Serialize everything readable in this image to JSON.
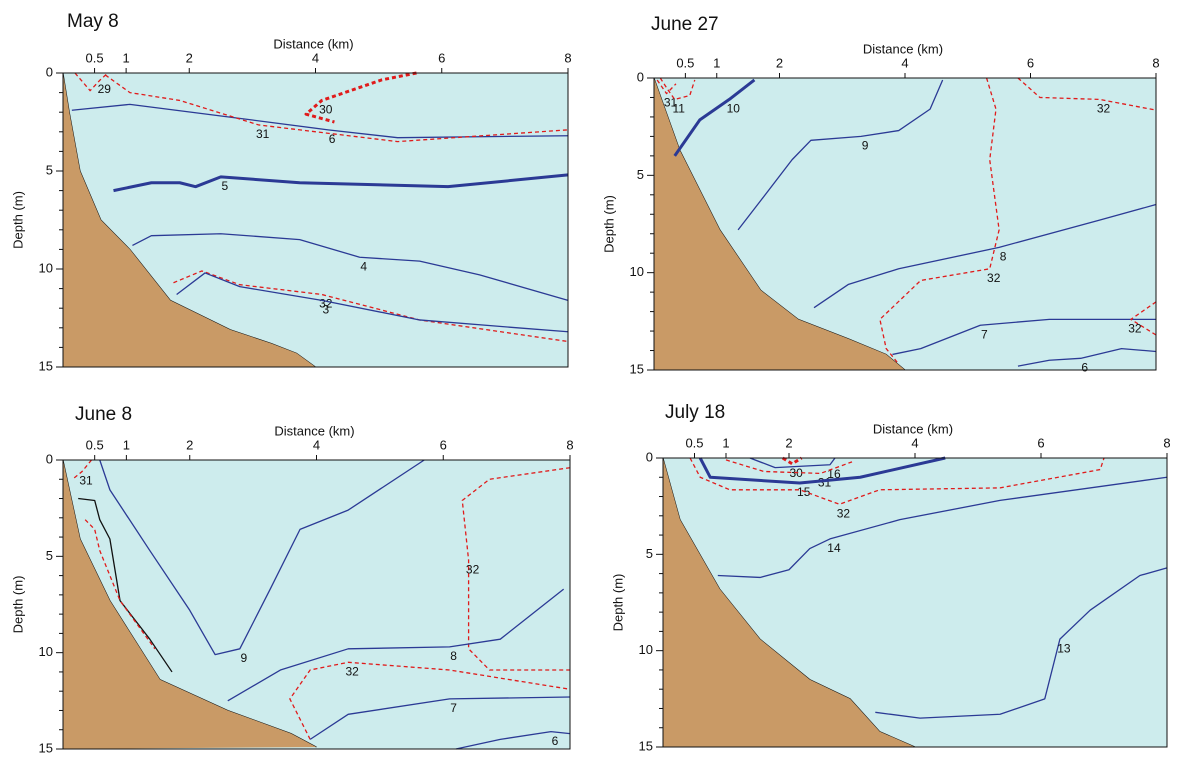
{
  "chart_data": [
    {
      "type": "contour",
      "title": "May 8",
      "xlabel": "Distance (km)",
      "ylabel": "Depth (m)",
      "xlim": [
        0,
        8
      ],
      "ylim": [
        15,
        0
      ],
      "xticks": [
        0.5,
        1,
        2,
        4,
        6,
        8
      ],
      "yticks": [
        0,
        5,
        10,
        15
      ],
      "yminorticks": [
        1,
        2,
        3,
        4,
        6,
        7,
        8,
        9,
        11,
        12,
        13,
        14
      ],
      "background": "#cdeced",
      "bottom": {
        "color": "#c99a66",
        "x": [
          0,
          0.1,
          0.27,
          0.6,
          1.06,
          1.7,
          2.65,
          3.3,
          3.7,
          4.0
        ],
        "y": [
          0,
          2,
          5,
          7.5,
          9,
          11.6,
          13.1,
          13.8,
          14.3,
          15
        ]
      },
      "contours": [
        {
          "level": 29,
          "color": "#e01b1b",
          "dashed": true,
          "thick": false,
          "x": [
            0.19,
            0.43,
            0.59,
            0.71
          ],
          "y": [
            0,
            0.9,
            0.35,
            0
          ]
        },
        {
          "level": 30,
          "color": "#e01b1b",
          "dashed": true,
          "thick": true,
          "x": [
            5.6,
            5.05,
            4.1,
            3.85,
            4.3
          ],
          "y": [
            0,
            0.35,
            1.4,
            2.1,
            2.5
          ]
        },
        {
          "level": 6,
          "color": "#2b3a95",
          "dashed": false,
          "thick": false,
          "x": [
            0.14,
            1.06,
            3.0,
            4.2,
            5.3,
            8
          ],
          "y": [
            1.9,
            1.6,
            2.4,
            2.9,
            3.3,
            3.2
          ]
        },
        {
          "level": 31,
          "color": "#e01b1b",
          "dashed": true,
          "thick": false,
          "x": [
            0.67,
            1.06,
            1.85,
            3.1,
            5.3,
            8
          ],
          "y": [
            0.1,
            1.0,
            1.4,
            2.65,
            3.5,
            2.9
          ]
        },
        {
          "level": 5,
          "color": "#2b3a95",
          "dashed": false,
          "thick": true,
          "x": [
            0.8,
            1.4,
            1.85,
            2.1,
            2.5,
            3.75,
            6.1,
            8
          ],
          "y": [
            6.0,
            5.6,
            5.6,
            5.8,
            5.3,
            5.6,
            5.8,
            5.2
          ]
        },
        {
          "level": 4,
          "color": "#2b3a95",
          "dashed": false,
          "thick": false,
          "x": [
            1.1,
            1.4,
            2.5,
            3.75,
            4.7,
            5.65,
            6.6,
            8
          ],
          "y": [
            8.8,
            8.3,
            8.2,
            8.5,
            9.4,
            9.6,
            10.3,
            11.6
          ]
        },
        {
          "level": 32,
          "color": "#e01b1b",
          "dashed": true,
          "thick": false,
          "x": [
            1.75,
            2.2,
            2.8,
            4.1,
            5.65,
            8
          ],
          "y": [
            10.7,
            10.1,
            10.8,
            11.3,
            12.6,
            13.7
          ]
        },
        {
          "level": 3,
          "color": "#2b3a95",
          "dashed": false,
          "thick": false,
          "x": [
            1.8,
            2.25,
            2.8,
            4.1,
            5.65,
            7.2,
            8
          ],
          "y": [
            11.3,
            10.2,
            10.9,
            11.6,
            12.6,
            13.0,
            13.2
          ]
        }
      ]
    },
    {
      "type": "contour",
      "title": "June 27",
      "xlabel": "Distance (km)",
      "ylabel": "Depth (m)",
      "xlim": [
        0,
        8
      ],
      "ylim": [
        15,
        0
      ],
      "xticks": [
        0.5,
        1,
        2,
        4,
        6,
        8
      ],
      "yticks": [
        0,
        5,
        10,
        15
      ],
      "yminorticks": [
        1,
        2,
        3,
        4,
        6,
        7,
        8,
        9,
        11,
        12,
        13,
        14
      ],
      "background": "#cdeced",
      "bottom": {
        "color": "#c99a66",
        "x": [
          0,
          0.41,
          1.05,
          1.7,
          2.3,
          3.1,
          3.7,
          4.0
        ],
        "y": [
          0,
          3.7,
          7.8,
          10.9,
          12.4,
          13.4,
          14.2,
          15
        ]
      },
      "contours": [
        {
          "level": 31,
          "color": "#e01b1b",
          "dashed": true,
          "thick": false,
          "x": [
            0.05,
            0.2,
            0.35
          ],
          "y": [
            0.1,
            0.8,
            0.3
          ]
        },
        {
          "level": 11,
          "color": "#e01b1b",
          "dashed": true,
          "thick": false,
          "x": [
            0.1,
            0.22,
            0.33,
            0.57,
            0.65
          ],
          "y": [
            0,
            0.6,
            1.1,
            0.9,
            0.1
          ]
        },
        {
          "level": 10,
          "color": "#2b3a95",
          "dashed": false,
          "thick": true,
          "x": [
            0.33,
            0.73,
            1.2,
            1.6
          ],
          "y": [
            4.0,
            2.15,
            1.1,
            0.1
          ]
        },
        {
          "level": 9,
          "color": "#2b3a95",
          "dashed": false,
          "thick": false,
          "x": [
            1.34,
            1.7,
            2.2,
            2.5,
            3.3,
            3.9,
            4.4,
            4.6
          ],
          "y": [
            7.8,
            6.3,
            4.2,
            3.2,
            3.0,
            2.7,
            1.6,
            0.1
          ]
        },
        {
          "level": 32,
          "color": "#e01b1b",
          "dashed": true,
          "thick": false,
          "x": [
            5.3,
            5.45,
            5.35,
            5.5,
            5.35,
            4.25,
            3.6,
            3.7,
            3.9
          ],
          "y": [
            0,
            1.6,
            4.2,
            7.8,
            9.8,
            10.4,
            12.4,
            13.9,
            14.7
          ]
        },
        {
          "level": 32,
          "color": "#e01b1b",
          "dashed": true,
          "thick": false,
          "x": [
            5.8,
            6.15,
            7.1,
            8
          ],
          "y": [
            0,
            1.0,
            1.1,
            1.65
          ]
        },
        {
          "level": 8,
          "color": "#2b3a95",
          "dashed": false,
          "thick": false,
          "x": [
            2.55,
            3.1,
            3.9,
            5.5,
            7.1,
            8
          ],
          "y": [
            11.8,
            10.6,
            9.8,
            8.7,
            7.3,
            6.5
          ]
        },
        {
          "level": 7,
          "color": "#2b3a95",
          "dashed": false,
          "thick": false,
          "x": [
            3.8,
            4.25,
            5.2,
            6.3,
            8
          ],
          "y": [
            14.2,
            13.9,
            12.7,
            12.4,
            12.4
          ]
        },
        {
          "level": 32,
          "color": "#e01b1b",
          "dashed": true,
          "thick": false,
          "x": [
            8,
            7.6,
            8
          ],
          "y": [
            11.5,
            12.4,
            13.2
          ]
        },
        {
          "level": 6,
          "color": "#2b3a95",
          "dashed": false,
          "thick": false,
          "x": [
            5.8,
            6.3,
            6.8,
            7.45,
            8
          ],
          "y": [
            14.8,
            14.5,
            14.4,
            13.9,
            14.05
          ]
        }
      ]
    },
    {
      "type": "contour",
      "title": "June 8",
      "xlabel": "Distance (km)",
      "ylabel": "Depth (m)",
      "xlim": [
        0,
        8
      ],
      "ylim": [
        15,
        0
      ],
      "xticks": [
        0.5,
        1,
        2,
        4,
        6,
        8
      ],
      "yticks": [
        0,
        5,
        10,
        15
      ],
      "yminorticks": [
        1,
        2,
        3,
        4,
        6,
        7,
        8,
        9,
        11,
        12,
        13,
        14
      ],
      "background": "#cdeced",
      "bottom": {
        "color": "#c99a66",
        "x": [
          0,
          0.27,
          0.74,
          1.53,
          2.6,
          3.6,
          4.0
        ],
        "y": [
          0,
          4.1,
          7.3,
          11.4,
          13,
          14.2,
          14.9
        ]
      },
      "contours": [
        {
          "level": 31,
          "color": "#e01b1b",
          "dashed": true,
          "thick": false,
          "x": [
            0.45,
            0.3,
            0.15
          ],
          "y": [
            0,
            0.6,
            1.0
          ]
        },
        {
          "color": "#111111",
          "dashed": false,
          "thick": false,
          "x": [
            0.24,
            0.5,
            0.58,
            0.74,
            0.9,
            1.37,
            1.72
          ],
          "y": [
            2.0,
            2.1,
            3.1,
            4.1,
            7.3,
            9.3,
            11
          ]
        },
        {
          "color": "#e01b1b",
          "dashed": true,
          "thick": false,
          "x": [
            0.35,
            0.5,
            0.58,
            0.9,
            1.45
          ],
          "y": [
            3.1,
            3.6,
            4.7,
            7.3,
            9.8
          ]
        },
        {
          "level": 9,
          "color": "#2b3a95",
          "dashed": false,
          "thick": false,
          "x": [
            0.58,
            0.74,
            1.37,
            2.0,
            2.4,
            2.79,
            3.27,
            3.74,
            4.5,
            5.7
          ],
          "y": [
            0,
            1.55,
            4.7,
            7.8,
            10.1,
            9.8,
            6.7,
            3.6,
            2.6,
            0
          ]
        },
        {
          "level": 32,
          "color": "#e01b1b",
          "dashed": true,
          "thick": false,
          "x": [
            8,
            6.73,
            6.3,
            6.4,
            6.4,
            6.73,
            8
          ],
          "y": [
            0.4,
            1.0,
            2.1,
            5.2,
            9.8,
            10.9,
            10.9
          ]
        },
        {
          "level": 8,
          "color": "#2b3a95",
          "dashed": false,
          "thick": false,
          "x": [
            2.6,
            3.43,
            4.5,
            6.1,
            6.9,
            7.9
          ],
          "y": [
            12.5,
            10.9,
            9.8,
            9.7,
            9.3,
            6.7
          ]
        },
        {
          "level": 32,
          "color": "#e01b1b",
          "dashed": true,
          "thick": false,
          "x": [
            3.9,
            3.58,
            3.9,
            4.5,
            6.1,
            8
          ],
          "y": [
            14.5,
            12.4,
            10.9,
            10.5,
            10.9,
            11.9
          ]
        },
        {
          "level": 7,
          "color": "#2b3a95",
          "dashed": false,
          "thick": false,
          "x": [
            3.9,
            4.5,
            6.1,
            8
          ],
          "y": [
            14.5,
            13.2,
            12.4,
            12.3
          ]
        },
        {
          "level": 6,
          "color": "#2b3a95",
          "dashed": false,
          "thick": false,
          "x": [
            6.2,
            6.9,
            7.7,
            8
          ],
          "y": [
            15,
            14.5,
            14.1,
            14.2
          ]
        }
      ]
    },
    {
      "type": "contour",
      "title": "July 18",
      "xlabel": "Distance (km)",
      "ylabel": "Depth (m)",
      "xlim": [
        0,
        8
      ],
      "ylim": [
        15,
        0
      ],
      "xticks": [
        0.5,
        1,
        2,
        4,
        6,
        8
      ],
      "yticks": [
        0,
        5,
        10,
        15
      ],
      "yminorticks": [
        1,
        2,
        3,
        4,
        6,
        7,
        8,
        9,
        11,
        12,
        13,
        14
      ],
      "background": "#cdeced",
      "bottom": {
        "color": "#c99a66",
        "x": [
          0,
          0.27,
          0.9,
          1.54,
          2.33,
          2.97,
          3.44,
          4.0
        ],
        "y": [
          0,
          3.2,
          6.8,
          9.4,
          11.5,
          12.5,
          14.2,
          15
        ]
      },
      "contours": [
        {
          "level": 16,
          "color": "#2b3a95",
          "dashed": false,
          "thick": false,
          "x": [
            1.38,
            1.78,
            2.65,
            2.73
          ],
          "y": [
            0,
            0.5,
            0.35,
            0
          ]
        },
        {
          "level": 30,
          "color": "#e01b1b",
          "dashed": true,
          "thick": true,
          "x": [
            1.9,
            2.05,
            2.2
          ],
          "y": [
            0,
            0.3,
            0
          ]
        },
        {
          "level": 31,
          "color": "#e01b1b",
          "dashed": true,
          "thick": false,
          "x": [
            1.0,
            1.6,
            2.5,
            3.0
          ],
          "y": [
            0.1,
            0.7,
            0.8,
            0.2
          ]
        },
        {
          "level": 15,
          "color": "#2b3a95",
          "dashed": false,
          "thick": true,
          "x": [
            0.59,
            0.75,
            2.17,
            3.13,
            4.48
          ],
          "y": [
            0,
            1.0,
            1.3,
            1.0,
            0
          ]
        },
        {
          "level": 32,
          "color": "#e01b1b",
          "dashed": true,
          "thick": false,
          "x": [
            0.43,
            0.59,
            1.06,
            2.17,
            2.8,
            3.44,
            5.35,
            6.94,
            7.0
          ],
          "y": [
            0,
            1.0,
            1.65,
            1.65,
            2.4,
            1.65,
            1.55,
            0.6,
            0
          ]
        },
        {
          "level": 14,
          "color": "#2b3a95",
          "dashed": false,
          "thick": false,
          "x": [
            0.87,
            1.54,
            2.0,
            2.33,
            2.65,
            3.76,
            5.35,
            8
          ],
          "y": [
            6.1,
            6.2,
            5.8,
            4.7,
            4.2,
            3.2,
            2.2,
            1.0
          ]
        },
        {
          "level": 13,
          "color": "#2b3a95",
          "dashed": false,
          "thick": false,
          "x": [
            3.37,
            4.08,
            5.35,
            6.06,
            6.3,
            6.78,
            7.57,
            8
          ],
          "y": [
            13.2,
            13.5,
            13.3,
            12.5,
            9.4,
            7.9,
            6.1,
            5.7
          ]
        }
      ]
    }
  ]
}
